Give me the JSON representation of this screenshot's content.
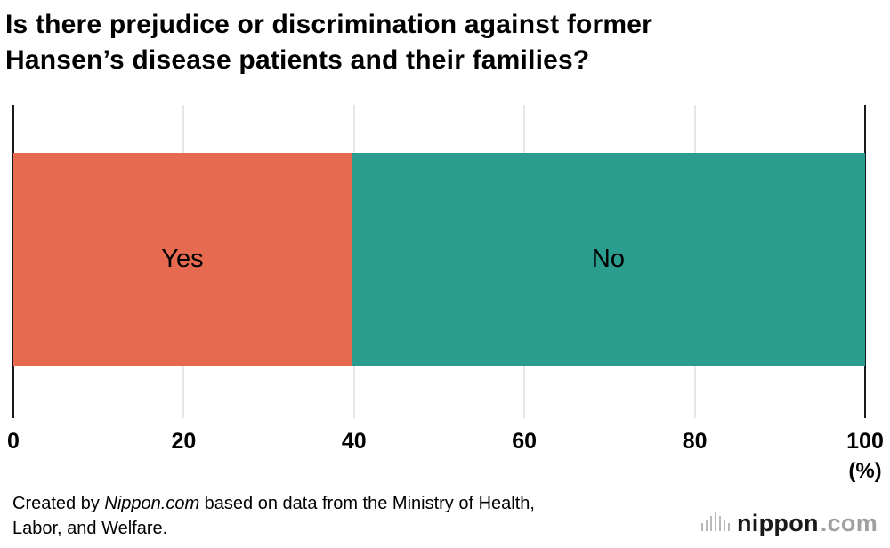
{
  "title": {
    "line1": "Is there prejudice or discrimination against former",
    "line2": "Hansen’s disease patients and their families?"
  },
  "chart_data": {
    "type": "bar",
    "orientation": "horizontal",
    "stacked": true,
    "title": "Is there prejudice or discrimination against former Hansen’s disease patients and their families?",
    "categories": [
      "Yes",
      "No"
    ],
    "values": [
      39.7,
      60.3
    ],
    "colors": [
      "#e66a50",
      "#2a9d8f"
    ],
    "xlim": [
      0,
      100
    ],
    "ticks": [
      0,
      20,
      40,
      60,
      80,
      100
    ],
    "unit_label": "(%)",
    "grid": true,
    "legend": "none"
  },
  "footer": {
    "credit_prefix": "Created by ",
    "credit_source": "Nippon.com",
    "credit_suffix": " based on data from the Ministry of Health, Labor, and Welfare."
  },
  "logo": {
    "wordmark": "nippon",
    "tld": ".com"
  }
}
